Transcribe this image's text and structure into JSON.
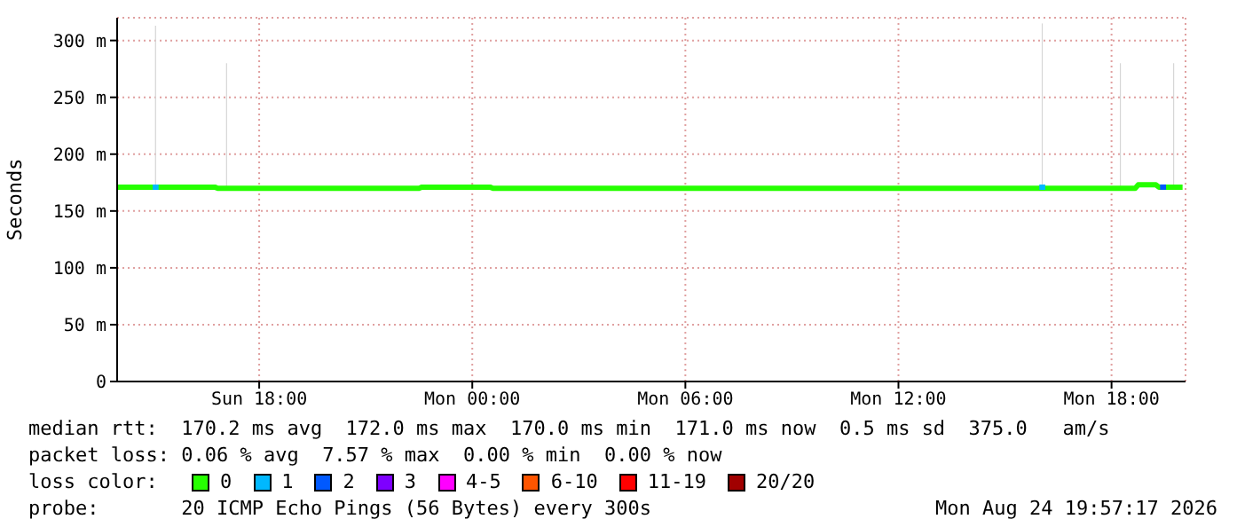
{
  "chart_data": {
    "type": "line",
    "ylabel": "Seconds",
    "legend_title": "loss color:",
    "legend": "bottom",
    "grid": true,
    "marker": "none",
    "line_style": "solid",
    "xlim": [
      "2026-08-23T14:00",
      "2026-08-24T20:05"
    ],
    "xticks": [
      {
        "value": "2026-08-23T18:00",
        "label": "Sun 18:00"
      },
      {
        "value": "2026-08-24T00:00",
        "label": "Mon 00:00"
      },
      {
        "value": "2026-08-24T06:00",
        "label": "Mon 06:00"
      },
      {
        "value": "2026-08-24T12:00",
        "label": "Mon 12:00"
      },
      {
        "value": "2026-08-24T18:00",
        "label": "Mon 18:00"
      }
    ],
    "ylim": [
      0,
      320
    ],
    "yticks": [
      {
        "value": 0,
        "label": "0"
      },
      {
        "value": 50,
        "label": "50 m"
      },
      {
        "value": 100,
        "label": "100 m"
      },
      {
        "value": 150,
        "label": "150 m"
      },
      {
        "value": 200,
        "label": "200 m"
      },
      {
        "value": 250,
        "label": "250 m"
      },
      {
        "value": 300,
        "label": "300 m"
      }
    ],
    "series": [
      {
        "type": "bar",
        "color": "#d6d6d6",
        "x": [
          "2026-08-23T15:05",
          "2026-08-23T17:05",
          "2026-08-24T16:03",
          "2026-08-24T18:15",
          "2026-08-24T19:45"
        ],
        "base": [
          172,
          172,
          172,
          172,
          172
        ],
        "values": [
          141,
          108,
          143,
          108,
          108
        ]
      },
      {
        "name": "0",
        "color": "#26ff00",
        "x": [
          "2026-08-23T14:00",
          "2026-08-23T16:45",
          "2026-08-23T16:50",
          "2026-08-23T22:30",
          "2026-08-23T22:35",
          "2026-08-24T00:30",
          "2026-08-24T00:35",
          "2026-08-24T18:40",
          "2026-08-24T18:45",
          "2026-08-24T19:15",
          "2026-08-24T19:20",
          "2026-08-24T20:00"
        ],
        "values": [
          171,
          171,
          170,
          170,
          171,
          171,
          170,
          170,
          173,
          173,
          171,
          171
        ]
      },
      {
        "name": "1",
        "color": "#00b8ff",
        "x": [
          "2026-08-23T15:00",
          "2026-08-23T15:10",
          "2026-08-23T15:20",
          "2026-08-24T15:58",
          "2026-08-24T16:08"
        ],
        "values": [
          171,
          171,
          null,
          171,
          171
        ]
      },
      {
        "name": "2",
        "color": "#0059ff",
        "x": [
          "2026-08-24T19:22",
          "2026-08-24T19:32"
        ],
        "values": [
          171,
          171
        ]
      },
      {
        "name": "3",
        "color": "#7e00ff"
      },
      {
        "name": "4-5",
        "color": "#ff00ff"
      },
      {
        "name": "6-10",
        "color": "#ff5500"
      },
      {
        "name": "11-19",
        "color": "#ff0000"
      },
      {
        "name": "20/20",
        "color": "#a10000"
      }
    ],
    "annotations": [
      "median rtt:  170.2 ms avg  172.0 ms max  170.0 ms min  171.0 ms now  0.5 ms sd  375.0   am/s",
      "packet loss: 0.06 % avg  7.57 % max  0.00 % min  0.00 % now",
      "probe:       20 ICMP Echo Pings (56 Bytes) every 300s",
      "Mon Aug 24 19:57:17 2026"
    ]
  }
}
